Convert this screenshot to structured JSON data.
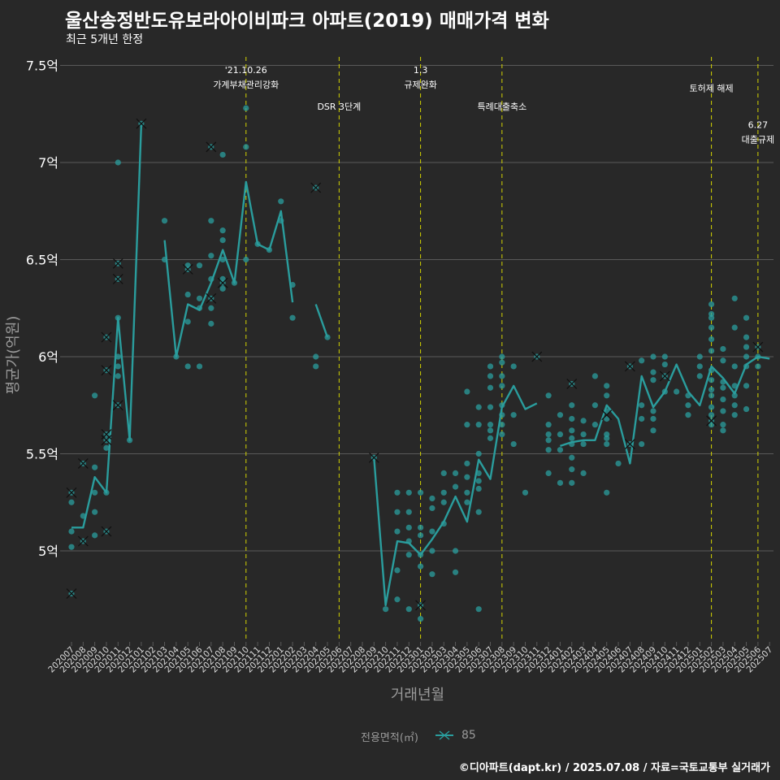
{
  "title": "울산송정반도유보라아이비파크 아파트(2019) 매매가격 변화",
  "subtitle": "최근 5개년 한정",
  "footer": "©디아파트(dapt.kr) / 2025.07.08 / 자료=국토교통부 실거래가",
  "colors": {
    "background": "#282828",
    "series": "#2a9d9d",
    "grid": "#5a5a5a",
    "event_line": "#d4d400",
    "axis_text": "#9a9a9a"
  },
  "chart_data": {
    "type": "line",
    "xlabel": "거래년월",
    "ylabel": "평균가(억원)",
    "ylim": [
      4.55,
      7.55
    ],
    "yticks": [
      5,
      5.5,
      6,
      6.5,
      7,
      7.5
    ],
    "ytick_labels": [
      "5억",
      "5.5억",
      "6억",
      "6.5억",
      "7억",
      "7.5억"
    ],
    "legend_title": "전용면적(㎡)",
    "legend": [
      "85"
    ],
    "categories": [
      "202007",
      "202008",
      "202009",
      "202010",
      "202011",
      "202012",
      "202101",
      "202102",
      "202103",
      "202104",
      "202105",
      "202106",
      "202107",
      "202108",
      "202109",
      "202110",
      "202111",
      "202112",
      "202201",
      "202202",
      "202203",
      "202204",
      "202205",
      "202206",
      "202207",
      "202208",
      "202209",
      "202210",
      "202211",
      "202212",
      "202301",
      "202302",
      "202303",
      "202304",
      "202305",
      "202306",
      "202307",
      "202308",
      "202309",
      "202310",
      "202311",
      "202312",
      "202401",
      "202402",
      "202403",
      "202404",
      "202405",
      "202406",
      "202407",
      "202408",
      "202409",
      "202410",
      "202411",
      "202412",
      "202501",
      "202502",
      "202503",
      "202504",
      "202505",
      "202506",
      "202507"
    ],
    "series": [
      {
        "name": "85",
        "values": [
          5.12,
          5.12,
          5.38,
          5.3,
          6.2,
          5.57,
          7.2,
          null,
          6.6,
          6.0,
          6.27,
          6.24,
          6.38,
          6.55,
          6.38,
          6.9,
          6.58,
          6.55,
          6.75,
          6.28,
          null,
          6.27,
          6.1,
          null,
          null,
          null,
          5.48,
          4.72,
          5.05,
          5.04,
          4.98,
          5.06,
          5.15,
          5.28,
          5.15,
          5.47,
          5.37,
          5.74,
          5.85,
          5.73,
          5.76,
          null,
          5.54,
          5.56,
          5.57,
          5.57,
          5.75,
          5.68,
          5.45,
          5.9,
          5.74,
          5.82,
          5.96,
          5.82,
          5.75,
          5.95,
          5.89,
          5.81,
          5.96,
          6.0,
          5.99
        ]
      }
    ],
    "points": [
      [
        0,
        5.3
      ],
      [
        0,
        5.25
      ],
      [
        0,
        5.1
      ],
      [
        0,
        5.02
      ],
      [
        0,
        4.78
      ],
      [
        1,
        5.45
      ],
      [
        1,
        5.18
      ],
      [
        1,
        5.05
      ],
      [
        2,
        5.8
      ],
      [
        2,
        5.43
      ],
      [
        2,
        5.3
      ],
      [
        2,
        5.2
      ],
      [
        2,
        5.08
      ],
      [
        3,
        6.1
      ],
      [
        3,
        5.93
      ],
      [
        3,
        5.6
      ],
      [
        3,
        5.57
      ],
      [
        3,
        5.53
      ],
      [
        3,
        5.3
      ],
      [
        3,
        5.1
      ],
      [
        4,
        7.0
      ],
      [
        4,
        6.48
      ],
      [
        4,
        6.4
      ],
      [
        4,
        6.2
      ],
      [
        4,
        6.0
      ],
      [
        4,
        5.95
      ],
      [
        4,
        5.9
      ],
      [
        4,
        5.75
      ],
      [
        5,
        5.57
      ],
      [
        6,
        7.2
      ],
      [
        8,
        6.7
      ],
      [
        8,
        6.5
      ],
      [
        9,
        6.0
      ],
      [
        10,
        6.47
      ],
      [
        10,
        6.45
      ],
      [
        10,
        6.32
      ],
      [
        10,
        6.18
      ],
      [
        10,
        5.95
      ],
      [
        11,
        6.47
      ],
      [
        11,
        6.3
      ],
      [
        11,
        6.25
      ],
      [
        11,
        5.95
      ],
      [
        12,
        7.08
      ],
      [
        12,
        6.7
      ],
      [
        12,
        6.52
      ],
      [
        12,
        6.4
      ],
      [
        12,
        6.3
      ],
      [
        12,
        6.25
      ],
      [
        12,
        6.17
      ],
      [
        13,
        7.04
      ],
      [
        13,
        6.65
      ],
      [
        13,
        6.6
      ],
      [
        13,
        6.5
      ],
      [
        13,
        6.4
      ],
      [
        13,
        6.38
      ],
      [
        13,
        6.35
      ],
      [
        14,
        6.38
      ],
      [
        15,
        7.28
      ],
      [
        15,
        7.08
      ],
      [
        15,
        6.5
      ],
      [
        16,
        6.58
      ],
      [
        17,
        6.55
      ],
      [
        18,
        6.8
      ],
      [
        18,
        6.7
      ],
      [
        19,
        6.37
      ],
      [
        19,
        6.2
      ],
      [
        21,
        6.87
      ],
      [
        21,
        6.0
      ],
      [
        21,
        5.95
      ],
      [
        22,
        6.1
      ],
      [
        26,
        5.48
      ],
      [
        27,
        4.7
      ],
      [
        28,
        5.3
      ],
      [
        28,
        5.2
      ],
      [
        28,
        5.1
      ],
      [
        28,
        4.9
      ],
      [
        28,
        4.75
      ],
      [
        29,
        5.3
      ],
      [
        29,
        5.2
      ],
      [
        29,
        5.12
      ],
      [
        29,
        5.05
      ],
      [
        29,
        4.98
      ],
      [
        29,
        4.7
      ],
      [
        30,
        5.3
      ],
      [
        30,
        5.12
      ],
      [
        30,
        5.08
      ],
      [
        30,
        4.98
      ],
      [
        30,
        4.92
      ],
      [
        30,
        4.72
      ],
      [
        30,
        4.65
      ],
      [
        31,
        5.27
      ],
      [
        31,
        5.22
      ],
      [
        31,
        5.1
      ],
      [
        31,
        5.0
      ],
      [
        31,
        4.88
      ],
      [
        32,
        5.4
      ],
      [
        32,
        5.3
      ],
      [
        32,
        5.25
      ],
      [
        32,
        5.14
      ],
      [
        33,
        5.4
      ],
      [
        33,
        5.33
      ],
      [
        33,
        5.0
      ],
      [
        33,
        4.89
      ],
      [
        34,
        5.82
      ],
      [
        34,
        5.65
      ],
      [
        34,
        5.45
      ],
      [
        34,
        5.38
      ],
      [
        34,
        5.3
      ],
      [
        34,
        5.25
      ],
      [
        35,
        5.74
      ],
      [
        35,
        5.65
      ],
      [
        35,
        5.5
      ],
      [
        35,
        5.4
      ],
      [
        35,
        5.36
      ],
      [
        35,
        5.32
      ],
      [
        35,
        5.2
      ],
      [
        35,
        4.7
      ],
      [
        36,
        5.95
      ],
      [
        36,
        5.9
      ],
      [
        36,
        5.84
      ],
      [
        36,
        5.74
      ],
      [
        36,
        5.65
      ],
      [
        36,
        5.62
      ],
      [
        36,
        5.58
      ],
      [
        37,
        6.0
      ],
      [
        37,
        5.97
      ],
      [
        37,
        5.9
      ],
      [
        37,
        5.85
      ],
      [
        37,
        5.75
      ],
      [
        37,
        5.7
      ],
      [
        37,
        5.65
      ],
      [
        37,
        5.6
      ],
      [
        38,
        5.95
      ],
      [
        38,
        5.7
      ],
      [
        38,
        5.55
      ],
      [
        39,
        5.3
      ],
      [
        40,
        6.0
      ],
      [
        41,
        5.8
      ],
      [
        41,
        5.65
      ],
      [
        41,
        5.6
      ],
      [
        41,
        5.57
      ],
      [
        41,
        5.52
      ],
      [
        41,
        5.4
      ],
      [
        42,
        5.7
      ],
      [
        42,
        5.6
      ],
      [
        42,
        5.52
      ],
      [
        42,
        5.35
      ],
      [
        43,
        5.86
      ],
      [
        43,
        5.75
      ],
      [
        43,
        5.68
      ],
      [
        43,
        5.62
      ],
      [
        43,
        5.58
      ],
      [
        43,
        5.55
      ],
      [
        43,
        5.48
      ],
      [
        43,
        5.42
      ],
      [
        43,
        5.35
      ],
      [
        44,
        5.67
      ],
      [
        44,
        5.6
      ],
      [
        44,
        5.55
      ],
      [
        44,
        5.4
      ],
      [
        45,
        5.9
      ],
      [
        45,
        5.75
      ],
      [
        45,
        5.65
      ],
      [
        46,
        5.85
      ],
      [
        46,
        5.8
      ],
      [
        46,
        5.72
      ],
      [
        46,
        5.68
      ],
      [
        46,
        5.6
      ],
      [
        46,
        5.58
      ],
      [
        46,
        5.55
      ],
      [
        46,
        5.3
      ],
      [
        47,
        5.45
      ],
      [
        48,
        5.95
      ],
      [
        48,
        5.55
      ],
      [
        49,
        5.98
      ],
      [
        49,
        5.75
      ],
      [
        49,
        5.68
      ],
      [
        49,
        5.55
      ],
      [
        50,
        6.0
      ],
      [
        50,
        5.92
      ],
      [
        50,
        5.88
      ],
      [
        50,
        5.72
      ],
      [
        50,
        5.68
      ],
      [
        50,
        5.62
      ],
      [
        51,
        6.0
      ],
      [
        51,
        5.96
      ],
      [
        51,
        5.9
      ],
      [
        51,
        5.82
      ],
      [
        52,
        5.82
      ],
      [
        53,
        5.8
      ],
      [
        53,
        5.75
      ],
      [
        53,
        5.7
      ],
      [
        54,
        6.0
      ],
      [
        54,
        5.95
      ],
      [
        54,
        5.9
      ],
      [
        55,
        6.27
      ],
      [
        55,
        6.22
      ],
      [
        55,
        6.2
      ],
      [
        55,
        6.15
      ],
      [
        55,
        6.09
      ],
      [
        55,
        6.03
      ],
      [
        55,
        5.93
      ],
      [
        55,
        5.88
      ],
      [
        55,
        5.83
      ],
      [
        55,
        5.8
      ],
      [
        55,
        5.74
      ],
      [
        55,
        5.7
      ],
      [
        55,
        5.67
      ],
      [
        55,
        5.65
      ],
      [
        56,
        6.04
      ],
      [
        56,
        5.98
      ],
      [
        56,
        5.87
      ],
      [
        56,
        5.84
      ],
      [
        56,
        5.78
      ],
      [
        56,
        5.72
      ],
      [
        56,
        5.65
      ],
      [
        56,
        5.62
      ],
      [
        57,
        6.3
      ],
      [
        57,
        6.15
      ],
      [
        57,
        5.95
      ],
      [
        57,
        5.85
      ],
      [
        57,
        5.8
      ],
      [
        57,
        5.75
      ],
      [
        57,
        5.7
      ],
      [
        58,
        6.2
      ],
      [
        58,
        6.1
      ],
      [
        58,
        6.05
      ],
      [
        58,
        6.0
      ],
      [
        58,
        5.95
      ],
      [
        58,
        5.85
      ],
      [
        58,
        5.73
      ],
      [
        59,
        6.05
      ],
      [
        59,
        6.0
      ],
      [
        59,
        5.95
      ]
    ],
    "crosses": [
      [
        0,
        5.3
      ],
      [
        0,
        4.78
      ],
      [
        1,
        5.45
      ],
      [
        1,
        5.05
      ],
      [
        3,
        6.1
      ],
      [
        3,
        5.93
      ],
      [
        3,
        5.6
      ],
      [
        3,
        5.57
      ],
      [
        3,
        5.1
      ],
      [
        4,
        6.48
      ],
      [
        4,
        6.4
      ],
      [
        4,
        5.75
      ],
      [
        6,
        7.2
      ],
      [
        10,
        6.45
      ],
      [
        12,
        7.08
      ],
      [
        12,
        6.3
      ],
      [
        13,
        6.38
      ],
      [
        21,
        6.87
      ],
      [
        26,
        5.48
      ],
      [
        30,
        4.72
      ],
      [
        40,
        6.0
      ],
      [
        43,
        5.86
      ],
      [
        46,
        5.7
      ],
      [
        48,
        5.95
      ],
      [
        48,
        5.55
      ],
      [
        51,
        5.9
      ],
      [
        55,
        5.67
      ],
      [
        59,
        6.05
      ]
    ],
    "events": [
      {
        "index": 15,
        "line1": "'21.10.26",
        "line2": "가계부채관리강화",
        "row": 1
      },
      {
        "index": 23,
        "line1": "DSR 3단계",
        "line2": "",
        "row": 2
      },
      {
        "index": 30,
        "line1": "1.3",
        "line2": "규제완화",
        "row": 1
      },
      {
        "index": 37,
        "line1": "특례대출축소",
        "line2": "",
        "row": 2
      },
      {
        "index": 55,
        "line1": "토허제 해제",
        "line2": "",
        "row": 1.5
      },
      {
        "index": 59,
        "line1": "6.27",
        "line2": "대출규제",
        "row": 2.5
      }
    ]
  }
}
